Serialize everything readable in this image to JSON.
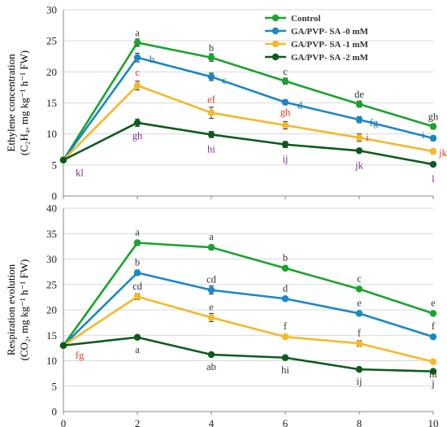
{
  "chart_data": [
    {
      "type": "line",
      "ylabel_line1": "Ethylene concentration",
      "ylabel_line2": "(C₂H₄, mg kg⁻¹ h⁻¹ FW)",
      "x": [
        0,
        2,
        4,
        6,
        8,
        10
      ],
      "xticks": [
        "",
        "",
        "",
        "",
        "",
        ""
      ],
      "ylim": [
        0,
        30
      ],
      "yticks": [
        "0",
        "5",
        "10",
        "15",
        "20",
        "25",
        "30"
      ],
      "legend_position": "top-right",
      "series": [
        {
          "name": "Control",
          "color": "#1aa32e",
          "values": [
            5.8,
            24.7,
            22.3,
            18.5,
            14.8,
            11.2
          ],
          "errors": [
            0.3,
            0.6,
            0.6,
            0.5,
            0.5,
            0.4
          ],
          "letters": [
            "",
            "a",
            "b",
            "c",
            "de",
            "gh"
          ],
          "letter_color": "#333333"
        },
        {
          "name": "GA/PVP- SA -0 mM",
          "color": "#1a87c8",
          "values": [
            5.8,
            22.3,
            19.2,
            15.1,
            12.3,
            9.3
          ],
          "errors": [
            0.3,
            0.7,
            0.6,
            0.4,
            0.5,
            0.4
          ],
          "letters": [
            "",
            "b",
            "c",
            "d",
            "fg",
            "i"
          ],
          "letter_color": "#1e6fa8"
        },
        {
          "name": "GA/PVP- SA -1 mM",
          "color": "#f5b829",
          "values": [
            5.8,
            17.8,
            13.4,
            11.4,
            9.4,
            7.2
          ],
          "errors": [
            0.3,
            0.7,
            0.9,
            0.6,
            0.6,
            0.4
          ],
          "letters": [
            "",
            "c",
            "ef",
            "gh",
            "i",
            "jk"
          ],
          "letter_color": "#e53a1f"
        },
        {
          "name": "GA/PVP- SA -2 mM",
          "color": "#0f5a1e",
          "values": [
            5.8,
            11.8,
            9.9,
            8.3,
            7.3,
            5.1
          ],
          "errors": [
            0.3,
            0.6,
            0.5,
            0.5,
            0.3,
            0.3
          ],
          "letters": [
            "kl",
            "gh",
            "hi",
            "ij",
            "jk",
            "l"
          ],
          "letter_color": "#7a2b8c"
        }
      ]
    },
    {
      "type": "line",
      "ylabel_line1": "Respiration evolution",
      "ylabel_line2": "(CO₂, mg kg⁻¹ h⁻¹ FW)",
      "x": [
        0,
        2,
        4,
        6,
        8,
        10
      ],
      "xticks": [
        "0",
        "2",
        "4",
        "6",
        "8",
        "10"
      ],
      "ylim": [
        0,
        40
      ],
      "yticks": [
        "0",
        "5",
        "10",
        "15",
        "20",
        "25",
        "30",
        "35",
        "40"
      ],
      "series": [
        {
          "name": "Control",
          "color": "#1aa32e",
          "values": [
            13.0,
            33.2,
            32.3,
            28.2,
            24.1,
            19.3
          ],
          "errors": [
            0.3,
            0.5,
            0.5,
            0.4,
            0.4,
            0.3
          ],
          "letters": [
            "",
            "a",
            "a",
            "b",
            "c",
            "e"
          ],
          "letter_color": "#333333"
        },
        {
          "name": "GA/PVP- SA -0 mM",
          "color": "#1a87c8",
          "values": [
            13.0,
            27.3,
            23.9,
            22.2,
            19.3,
            14.7
          ],
          "errors": [
            0.3,
            0.5,
            0.8,
            0.4,
            0.4,
            0.4
          ],
          "letters": [
            "",
            "b",
            "cd",
            "d",
            "e",
            "f"
          ],
          "letter_color": "#333333"
        },
        {
          "name": "GA/PVP- SA -1 mM",
          "color": "#f5b829",
          "values": [
            13.0,
            22.6,
            18.5,
            14.7,
            13.4,
            9.8
          ],
          "errors": [
            0.3,
            0.6,
            0.8,
            0.4,
            0.6,
            0.3
          ],
          "letters": [
            "",
            "cd",
            "e",
            "f",
            "f",
            "hi"
          ],
          "letter_color": "#333333"
        },
        {
          "name": "GA/PVP- SA -2 mM",
          "color": "#0f5a1e",
          "values": [
            13.0,
            14.6,
            11.2,
            10.6,
            8.3,
            7.9
          ],
          "errors": [
            0.3,
            0.4,
            0.4,
            0.4,
            0.3,
            0.3
          ],
          "letters": [
            "fg",
            "a",
            "ab",
            "hi",
            "ij",
            "j"
          ],
          "letter_color": "#333333"
        }
      ],
      "first_letter_color": "#e53a1f"
    }
  ]
}
